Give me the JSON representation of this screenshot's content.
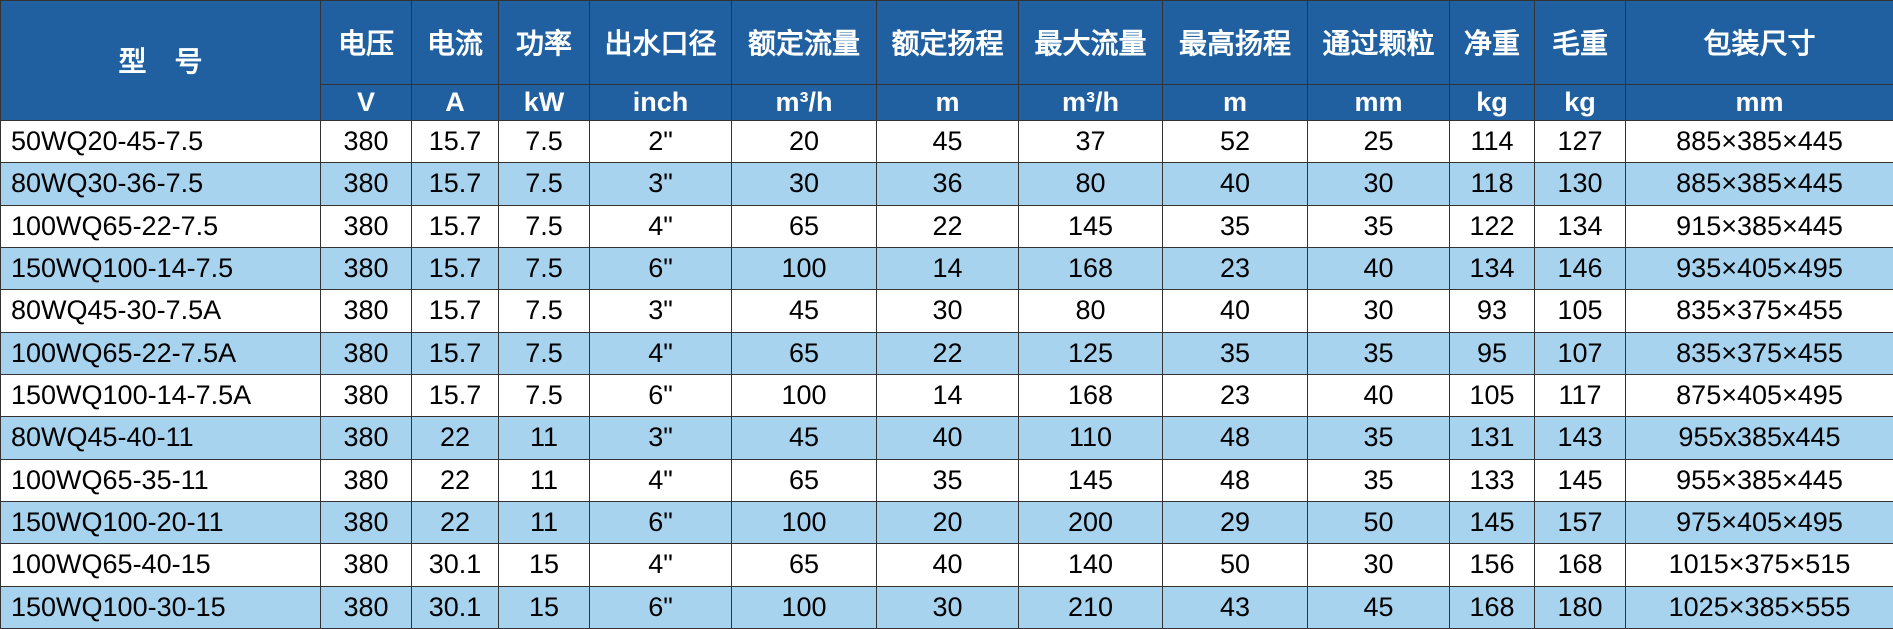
{
  "header": {
    "labels": [
      "型　号",
      "电压",
      "电流",
      "功率",
      "出水口径",
      "额定流量",
      "额定扬程",
      "最大流量",
      "最高扬程",
      "通过颗粒",
      "净重",
      "毛重",
      "包装尺寸"
    ],
    "units": [
      "V",
      "A",
      "kW",
      "inch",
      "m³/h",
      "m",
      "m³/h",
      "m",
      "mm",
      "kg",
      "kg",
      "mm"
    ]
  },
  "table": {
    "rows": [
      [
        "50WQ20-45-7.5",
        380,
        15.7,
        7.5,
        "2\"",
        20,
        45,
        37,
        52,
        25,
        114,
        127,
        "885×385×445"
      ],
      [
        "80WQ30-36-7.5",
        380,
        15.7,
        7.5,
        "3\"",
        30,
        36,
        80,
        40,
        30,
        118,
        130,
        "885×385×445"
      ],
      [
        "100WQ65-22-7.5",
        380,
        15.7,
        7.5,
        "4\"",
        65,
        22,
        145,
        35,
        35,
        122,
        134,
        "915×385×445"
      ],
      [
        "150WQ100-14-7.5",
        380,
        15.7,
        7.5,
        "6\"",
        100,
        14,
        168,
        23,
        40,
        134,
        146,
        "935×405×495"
      ],
      [
        "80WQ45-30-7.5A",
        380,
        15.7,
        7.5,
        "3\"",
        45,
        30,
        80,
        40,
        30,
        93,
        105,
        "835×375×455"
      ],
      [
        "100WQ65-22-7.5A",
        380,
        15.7,
        7.5,
        "4\"",
        65,
        22,
        125,
        35,
        35,
        95,
        107,
        "835×375×455"
      ],
      [
        "150WQ100-14-7.5A",
        380,
        15.7,
        7.5,
        "6\"",
        100,
        14,
        168,
        23,
        40,
        105,
        117,
        "875×405×495"
      ],
      [
        "80WQ45-40-11",
        380,
        22,
        11,
        "3\"",
        45,
        40,
        110,
        48,
        35,
        131,
        143,
        "955x385x445"
      ],
      [
        "100WQ65-35-11",
        380,
        22,
        11,
        "4\"",
        65,
        35,
        145,
        48,
        35,
        133,
        145,
        "955×385×445"
      ],
      [
        "150WQ100-20-11",
        380,
        22,
        11,
        "6\"",
        100,
        20,
        200,
        29,
        50,
        145,
        157,
        "975×405×495"
      ],
      [
        "100WQ65-40-15",
        380,
        30.1,
        15,
        "4\"",
        65,
        40,
        140,
        50,
        30,
        156,
        168,
        "1015×375×515"
      ],
      [
        "150WQ100-30-15",
        380,
        30.1,
        15,
        "6\"",
        100,
        30,
        210,
        43,
        45,
        168,
        180,
        "1025×385×555"
      ]
    ]
  }
}
